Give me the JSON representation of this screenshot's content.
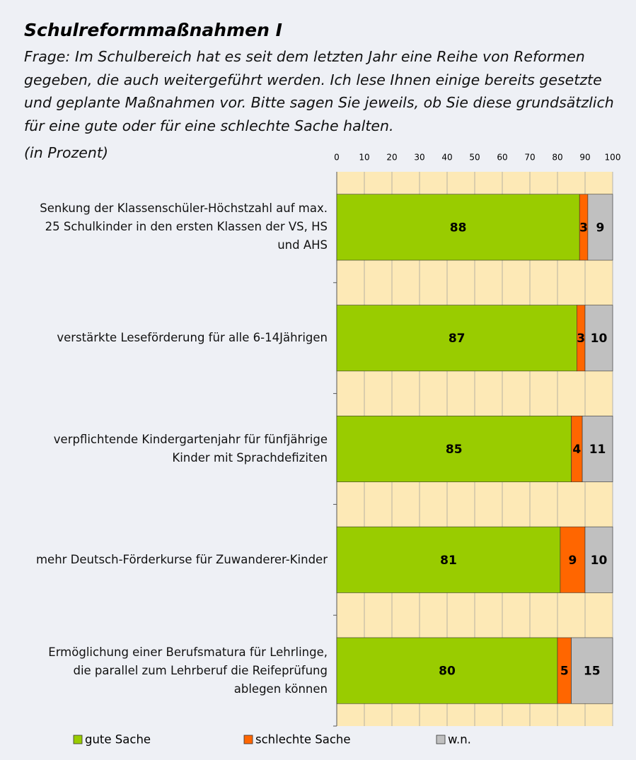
{
  "chart_data": {
    "type": "stacked_barh",
    "title": "Schulreformmaßnahmen I",
    "subtitle": "Frage: Im Schulbereich hat es seit dem letzten Jahr eine Reihe von Reformen gegeben, die auch weitergeführt werden. Ich lese Ihnen einige bereits gesetzte und geplante Maßnahmen vor. Bitte sagen Sie jeweils, ob Sie diese grundsätzlich für eine gute oder für eine schlechte Sache halten.",
    "unit_note": "(in Prozent)",
    "categories": [
      "Senkung der Klassenschüler-Höchstzahl auf max. 25 Schulkinder in den ersten Klassen der VS, HS und AHS",
      "verstärkte Leseförderung für alle 6-14Jährigen",
      "verpflichtende Kindergartenjahr für fünfjährige Kinder mit Sprachdefiziten",
      "mehr Deutsch-Förderkurse für Zuwanderer-Kinder",
      "Ermöglichung einer Berufsmatura für Lehrlinge, die parallel zum Lehrberuf die Reifeprüfung ablegen können"
    ],
    "series": [
      {
        "name": "gute Sache",
        "color": "#99cc00",
        "values": [
          88,
          87,
          85,
          81,
          80
        ]
      },
      {
        "name": "schlechte Sache",
        "color": "#ff6600",
        "values": [
          3,
          3,
          4,
          9,
          5
        ]
      },
      {
        "name": "w.n.",
        "color": "#c0c0c0",
        "values": [
          9,
          10,
          11,
          10,
          15
        ]
      }
    ],
    "xlim": [
      0,
      100
    ],
    "xticks": [
      0,
      10,
      20,
      30,
      40,
      50,
      60,
      70,
      80,
      90,
      100
    ],
    "grid": true,
    "legend": "bottom"
  }
}
